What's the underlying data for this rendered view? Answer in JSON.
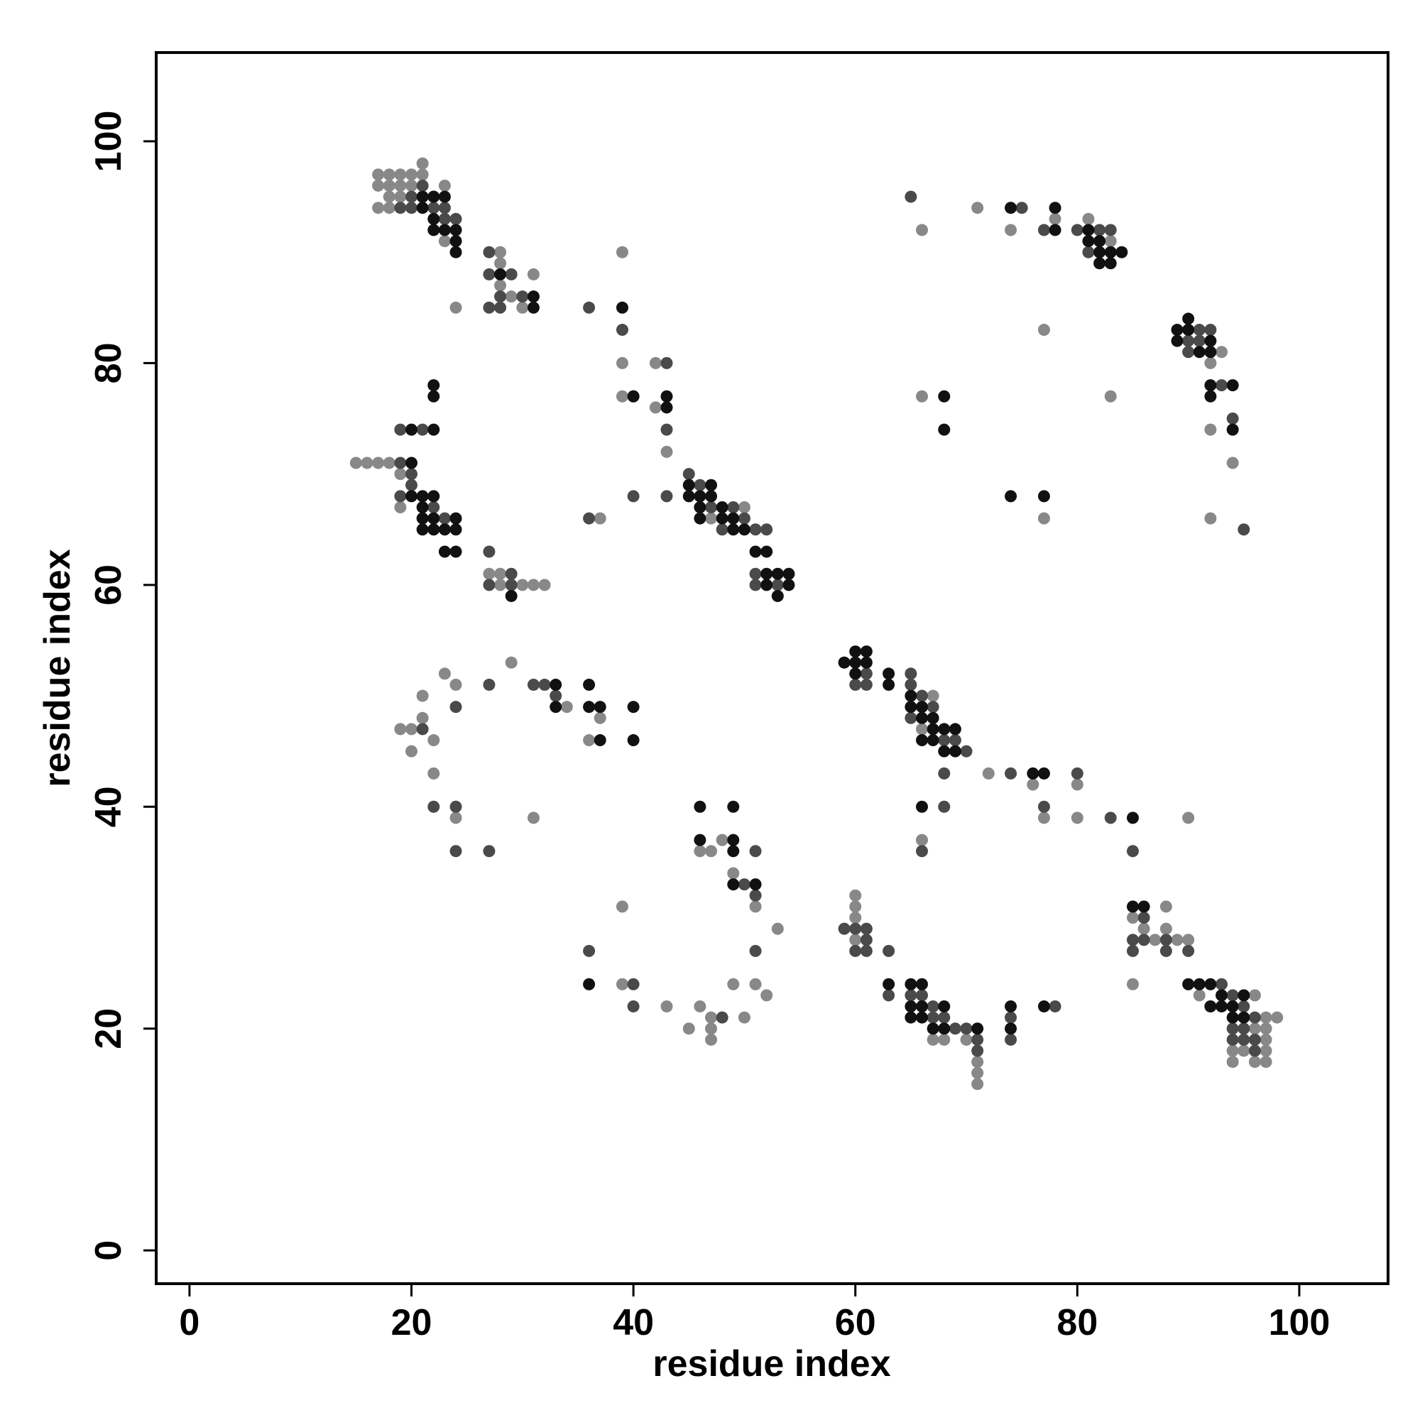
{
  "chart_data": {
    "type": "scatter",
    "xlabel": "residue index",
    "ylabel": "residue index",
    "xlim": [
      -3,
      108
    ],
    "ylim": [
      -3,
      108
    ],
    "xticks": [
      0,
      20,
      40,
      60,
      80,
      100
    ],
    "yticks": [
      0,
      20,
      40,
      60,
      80,
      100
    ],
    "series": [
      {
        "color": "#888888",
        "x": [
          17,
          18,
          19,
          20,
          21,
          21,
          17,
          18,
          19,
          20,
          17,
          18,
          18,
          19,
          23,
          23,
          24,
          28,
          28,
          28,
          29,
          31,
          30,
          39,
          39,
          39,
          42,
          42,
          43,
          37,
          50,
          47,
          19,
          19,
          15,
          16,
          17,
          18,
          27,
          28,
          28,
          30,
          31,
          32,
          66,
          71,
          74,
          78,
          81,
          83,
          93,
          92,
          92,
          94,
          92,
          77,
          66,
          83,
          77,
          67,
          66,
          72,
          76,
          80,
          77,
          80,
          90,
          66,
          29,
          23,
          21,
          24,
          34,
          37,
          19,
          20,
          21,
          22,
          20,
          36,
          22,
          24,
          31,
          48,
          46,
          47,
          49,
          51,
          53,
          39,
          39,
          43,
          46,
          47,
          47,
          45,
          47,
          50,
          49,
          51,
          52,
          60,
          60,
          60,
          60,
          67,
          68,
          70,
          71,
          71,
          71,
          85,
          88,
          86,
          88,
          87,
          89,
          90,
          85,
          91,
          96,
          97,
          98,
          96,
          97,
          97,
          94,
          95,
          97,
          94,
          96,
          97
        ],
        "values": [
          97,
          97,
          97,
          97,
          97,
          98,
          96,
          96,
          96,
          96,
          94,
          94,
          95,
          95,
          96,
          91,
          85,
          90,
          89,
          87,
          86,
          88,
          85,
          90,
          80,
          77,
          80,
          76,
          72,
          66,
          67,
          66,
          70,
          67,
          71,
          71,
          71,
          71,
          61,
          61,
          60,
          60,
          60,
          60,
          92,
          94,
          92,
          93,
          93,
          91,
          81,
          80,
          74,
          71,
          66,
          83,
          77,
          77,
          66,
          50,
          47,
          43,
          42,
          42,
          39,
          39,
          39,
          37,
          53,
          52,
          50,
          51,
          49,
          48,
          47,
          47,
          48,
          46,
          45,
          46,
          43,
          39,
          39,
          37,
          36,
          36,
          34,
          31,
          29,
          31,
          24,
          22,
          22,
          21,
          20,
          20,
          19,
          21,
          24,
          24,
          23,
          32,
          31,
          30,
          28,
          19,
          19,
          19,
          17,
          16,
          15,
          30,
          31,
          29,
          29,
          28,
          28,
          28,
          24,
          23,
          23,
          21,
          21,
          20,
          20,
          19,
          18,
          18,
          18,
          17,
          17,
          17
        ]
      },
      {
        "color": "#4a4a4a",
        "x": [
          19,
          20,
          20,
          21,
          21,
          22,
          23,
          23,
          24,
          22,
          27,
          27,
          28,
          29,
          27,
          28,
          30,
          36,
          39,
          40,
          43,
          43,
          43,
          40,
          36,
          45,
          46,
          47,
          49,
          50,
          48,
          51,
          52,
          51,
          51,
          53,
          19,
          21,
          19,
          20,
          19,
          22,
          23,
          20,
          27,
          29,
          27,
          29,
          65,
          75,
          77,
          80,
          82,
          83,
          81,
          91,
          92,
          90,
          91,
          90,
          93,
          94,
          95,
          61,
          65,
          60,
          61,
          65,
          66,
          67,
          65,
          68,
          69,
          70,
          68,
          74,
          80,
          68,
          77,
          83,
          85,
          66,
          27,
          31,
          32,
          33,
          24,
          21,
          22,
          24,
          24,
          27,
          51,
          50,
          51,
          51,
          36,
          40,
          40,
          48,
          59,
          60,
          61,
          61,
          60,
          61,
          63,
          63,
          65,
          66,
          67,
          67,
          68,
          69,
          70,
          71,
          71,
          74,
          74,
          78,
          86,
          85,
          86,
          88,
          85,
          88,
          90,
          93,
          94,
          95,
          96,
          94,
          95,
          94,
          95,
          96,
          96
        ],
        "values": [
          94,
          94,
          95,
          96,
          95,
          94,
          94,
          93,
          93,
          95,
          90,
          88,
          86,
          88,
          85,
          85,
          86,
          85,
          83,
          77,
          80,
          74,
          68,
          68,
          66,
          70,
          69,
          67,
          67,
          66,
          65,
          65,
          65,
          61,
          60,
          60,
          74,
          74,
          71,
          69,
          68,
          67,
          66,
          70,
          63,
          61,
          60,
          60,
          95,
          94,
          92,
          92,
          92,
          92,
          90,
          83,
          83,
          82,
          82,
          81,
          78,
          75,
          65,
          52,
          52,
          51,
          51,
          51,
          50,
          49,
          48,
          46,
          46,
          45,
          43,
          43,
          43,
          40,
          40,
          39,
          36,
          36,
          51,
          51,
          51,
          50,
          49,
          47,
          40,
          40,
          36,
          36,
          36,
          33,
          32,
          27,
          27,
          24,
          22,
          21,
          29,
          29,
          29,
          28,
          27,
          27,
          27,
          23,
          23,
          23,
          22,
          21,
          21,
          20,
          20,
          19,
          18,
          21,
          19,
          22,
          30,
          28,
          28,
          28,
          27,
          27,
          27,
          24,
          23,
          22,
          21,
          20,
          20,
          19,
          19,
          19,
          18
        ]
      },
      {
        "color": "#111111",
        "x": [
          21,
          22,
          23,
          22,
          22,
          23,
          24,
          24,
          24,
          21,
          28,
          31,
          31,
          39,
          43,
          43,
          40,
          45,
          47,
          45,
          46,
          47,
          46,
          48,
          46,
          48,
          49,
          49,
          50,
          51,
          52,
          52,
          53,
          54,
          52,
          54,
          53,
          20,
          22,
          20,
          22,
          22,
          20,
          21,
          22,
          21,
          21,
          22,
          24,
          21,
          22,
          23,
          24,
          23,
          24,
          29,
          74,
          78,
          78,
          81,
          81,
          82,
          82,
          83,
          84,
          82,
          83,
          89,
          90,
          90,
          89,
          92,
          91,
          92,
          92,
          94,
          92,
          94,
          68,
          68,
          74,
          77,
          59,
          60,
          61,
          60,
          61,
          60,
          63,
          63,
          65,
          65,
          66,
          66,
          67,
          67,
          68,
          69,
          66,
          67,
          68,
          69,
          76,
          77,
          66,
          85,
          33,
          36,
          33,
          36,
          37,
          40,
          37,
          40,
          46,
          49,
          46,
          49,
          49,
          49,
          51,
          36,
          63,
          65,
          66,
          65,
          66,
          68,
          65,
          66,
          67,
          68,
          71,
          74,
          74,
          77,
          85,
          86,
          90,
          91,
          92,
          92,
          93,
          95,
          92,
          93,
          94,
          94,
          95
        ],
        "values": [
          94,
          95,
          95,
          93,
          92,
          92,
          92,
          91,
          90,
          95,
          88,
          86,
          85,
          85,
          77,
          76,
          77,
          69,
          69,
          68,
          68,
          68,
          67,
          67,
          66,
          66,
          66,
          65,
          65,
          63,
          63,
          61,
          61,
          61,
          60,
          60,
          59,
          74,
          74,
          71,
          78,
          77,
          68,
          68,
          68,
          67,
          66,
          66,
          66,
          65,
          65,
          65,
          65,
          63,
          63,
          59,
          94,
          92,
          94,
          92,
          91,
          91,
          90,
          90,
          90,
          89,
          89,
          83,
          83,
          84,
          82,
          82,
          81,
          81,
          78,
          78,
          77,
          74,
          77,
          74,
          68,
          68,
          53,
          54,
          54,
          53,
          53,
          52,
          52,
          51,
          50,
          49,
          49,
          48,
          48,
          47,
          47,
          47,
          46,
          46,
          45,
          45,
          43,
          43,
          40,
          39,
          51,
          51,
          49,
          49,
          49,
          49,
          46,
          46,
          40,
          40,
          37,
          37,
          36,
          33,
          33,
          24,
          24,
          24,
          24,
          22,
          22,
          22,
          21,
          21,
          20,
          20,
          20,
          22,
          20,
          22,
          31,
          31,
          24,
          24,
          24,
          22,
          23,
          23,
          22,
          22,
          22,
          21,
          21
        ]
      }
    ]
  }
}
